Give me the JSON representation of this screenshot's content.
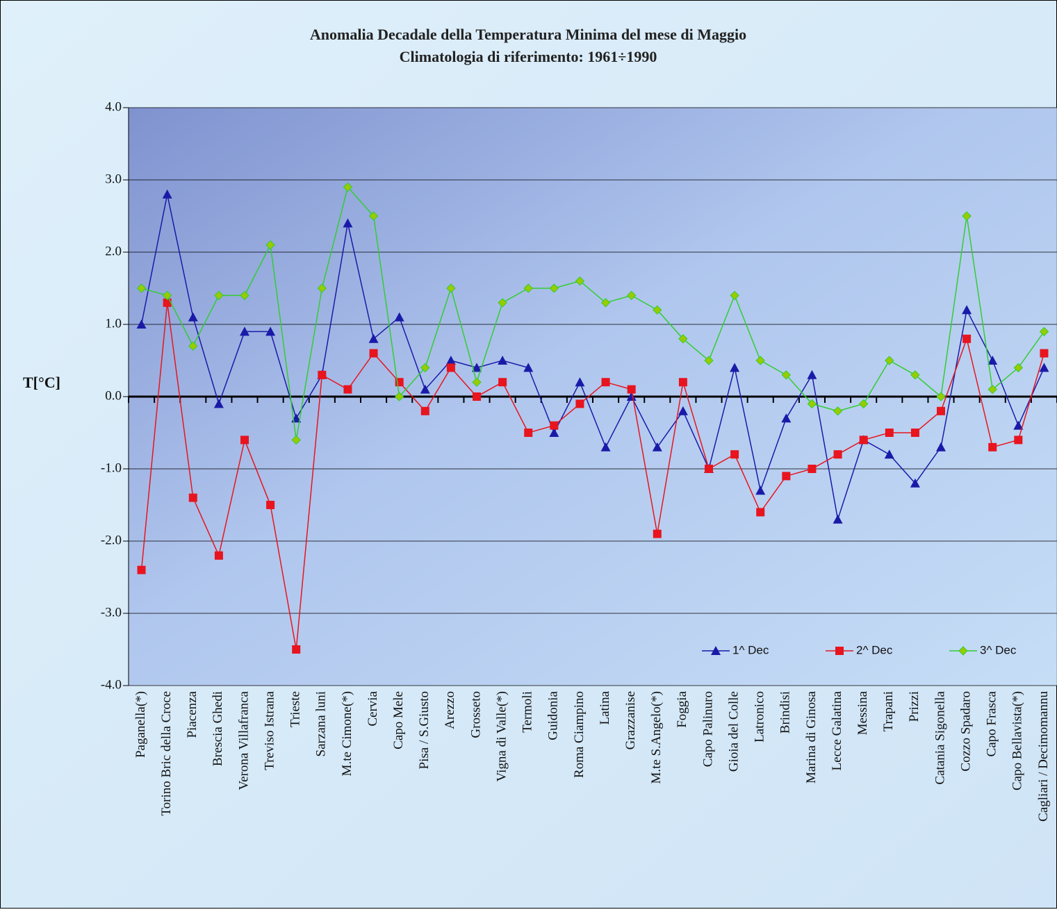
{
  "chart_data": {
    "type": "line",
    "title": "Anomalia Decadale della Temperatura Minima del mese di Maggio",
    "subtitle": "Climatologia di riferimento: 1961÷1990",
    "y_label": "T[°C]",
    "categories": [
      "Paganella(*)",
      "Torino Bric della Croce",
      "Piacenza",
      "Brescia Ghedi",
      "Verona Villafranca",
      "Treviso Istrana",
      "Trieste",
      "Sarzana luni",
      "M.te Cimone(*)",
      "Cervia",
      "Capo Mele",
      "Pisa / S.Giusto",
      "Arezzo",
      "Grosseto",
      "Vigna di Valle(*)",
      "Termoli",
      "Guidonia",
      "Roma Ciampino",
      "Latina",
      "Grazzanise",
      "M.te S.Angelo(*)",
      "Foggia",
      "Capo Palinuro",
      "Gioia del Colle",
      "Latronico",
      "Brindisi",
      "Marina di Ginosa",
      "Lecce Galatina",
      "Messina",
      "Trapani",
      "Prizzi",
      "Catania Sigonella",
      "Cozzo Spadaro",
      "Capo Frasca",
      "Capo Bellavista(*)",
      "Cagliari / Decimomannu"
    ],
    "series": [
      {
        "name": "1^ Dec",
        "color": "#1a1aa8",
        "marker": "triangle",
        "values": [
          1.0,
          2.8,
          1.1,
          -0.1,
          0.9,
          0.9,
          -0.3,
          0.3,
          2.4,
          0.8,
          1.1,
          0.1,
          0.5,
          0.4,
          0.5,
          0.4,
          -0.5,
          0.2,
          -0.7,
          0.0,
          -0.7,
          -0.2,
          -1.0,
          0.4,
          -1.3,
          -0.3,
          0.3,
          -1.7,
          -0.6,
          -0.8,
          -1.2,
          -0.7,
          1.2,
          0.5,
          -0.4,
          0.4
        ]
      },
      {
        "name": "2^ Dec",
        "color": "#e8141e",
        "marker": "square",
        "values": [
          -2.4,
          1.3,
          -1.4,
          -2.2,
          -0.6,
          -1.5,
          -3.5,
          0.3,
          0.1,
          0.6,
          0.2,
          -0.2,
          0.4,
          0.0,
          0.2,
          -0.5,
          -0.4,
          -0.1,
          0.2,
          0.1,
          -1.9,
          0.2,
          -1.0,
          -0.8,
          -1.6,
          -1.1,
          -1.0,
          -0.8,
          -0.6,
          -0.5,
          -0.5,
          -0.2,
          0.8,
          -0.7,
          -0.6,
          0.6
        ]
      },
      {
        "name": "3^ Dec",
        "color": "#33cc33",
        "marker": "diamond",
        "values": [
          1.5,
          1.4,
          0.7,
          1.4,
          1.4,
          2.1,
          -0.6,
          1.5,
          2.9,
          2.5,
          0.0,
          0.4,
          1.5,
          0.2,
          1.3,
          1.5,
          1.5,
          1.6,
          1.3,
          1.4,
          1.2,
          0.8,
          0.5,
          1.4,
          0.5,
          0.3,
          -0.1,
          -0.2,
          -0.1,
          0.5,
          0.3,
          0.0,
          2.5,
          0.1,
          0.4,
          0.9
        ]
      }
    ],
    "ylim": [
      -4,
      4
    ],
    "yticks": [
      {
        "value": -4,
        "label": "-4.0"
      },
      {
        "value": -3,
        "label": "-3.0"
      },
      {
        "value": -2,
        "label": "-2.0"
      },
      {
        "value": -1,
        "label": "-1.0"
      },
      {
        "value": 0,
        "label": "0.0"
      },
      {
        "value": 1,
        "label": "1.0"
      },
      {
        "value": 2,
        "label": "2.0"
      },
      {
        "value": 3,
        "label": "3.0"
      },
      {
        "value": 4,
        "label": "4.0"
      }
    ],
    "grid": true,
    "legend": "bottom-right"
  }
}
